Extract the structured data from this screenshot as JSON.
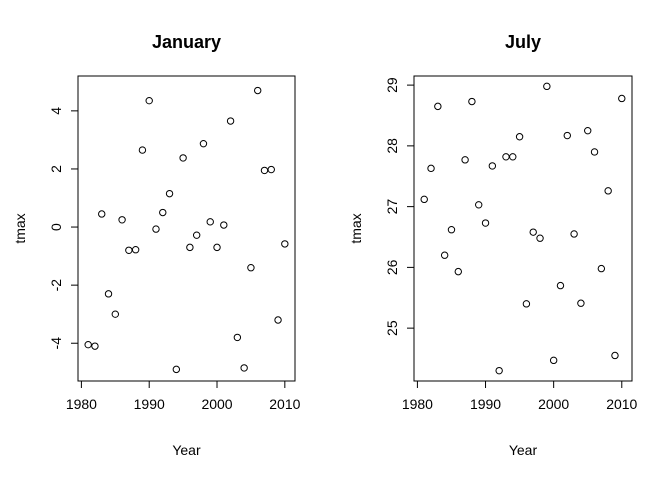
{
  "chart_data": [
    {
      "type": "scatter",
      "title": "January",
      "xlabel": "Year",
      "ylabel": "tmax",
      "xlim": [
        1979.5,
        2011.5
      ],
      "ylim": [
        -5.3,
        5.2
      ],
      "xticks": [
        1980,
        1990,
        2000,
        2010
      ],
      "yticks": [
        -4,
        -2,
        0,
        2,
        4
      ],
      "xtick_labels": [
        "1980",
        "1990",
        "2000",
        "2010"
      ],
      "ytick_labels": [
        "-4",
        "-2",
        "0",
        "2",
        "4"
      ],
      "grid": false,
      "x": [
        1981,
        1982,
        1983,
        1984,
        1985,
        1986,
        1987,
        1988,
        1989,
        1990,
        1991,
        1992,
        1993,
        1994,
        1995,
        1996,
        1997,
        1998,
        1999,
        2000,
        2001,
        2002,
        2003,
        2004,
        2005,
        2006,
        2007,
        2008,
        2009,
        2010
      ],
      "y": [
        -4.05,
        -4.1,
        0.45,
        -2.3,
        -3.0,
        0.25,
        -0.8,
        -0.78,
        2.65,
        4.35,
        -0.07,
        0.5,
        1.15,
        -4.9,
        2.38,
        -0.7,
        -0.28,
        2.87,
        0.18,
        -0.7,
        0.07,
        3.65,
        -3.8,
        -4.85,
        -1.4,
        4.7,
        1.95,
        1.98,
        -3.2,
        -0.58
      ]
    },
    {
      "type": "scatter",
      "title": "July",
      "xlabel": "Year",
      "ylabel": "tmax",
      "xlim": [
        1979.5,
        2011.5
      ],
      "ylim": [
        24.13,
        29.15
      ],
      "xticks": [
        1980,
        1990,
        2000,
        2010
      ],
      "yticks": [
        25,
        26,
        27,
        28,
        29
      ],
      "xtick_labels": [
        "1980",
        "1990",
        "2000",
        "2010"
      ],
      "ytick_labels": [
        "25",
        "26",
        "27",
        "28",
        "29"
      ],
      "grid": false,
      "x": [
        1981,
        1982,
        1983,
        1984,
        1985,
        1986,
        1987,
        1988,
        1989,
        1990,
        1991,
        1992,
        1993,
        1994,
        1995,
        1996,
        1997,
        1998,
        1999,
        2000,
        2001,
        2002,
        2003,
        2004,
        2005,
        2006,
        2007,
        2008,
        2009,
        2010
      ],
      "y": [
        27.12,
        27.63,
        28.65,
        26.2,
        26.62,
        25.93,
        27.77,
        28.73,
        27.03,
        26.73,
        27.67,
        24.3,
        27.82,
        27.82,
        28.15,
        25.4,
        26.58,
        26.48,
        28.98,
        24.47,
        25.7,
        28.17,
        26.55,
        25.41,
        28.25,
        27.9,
        25.98,
        27.26,
        24.55,
        28.78
      ]
    }
  ]
}
